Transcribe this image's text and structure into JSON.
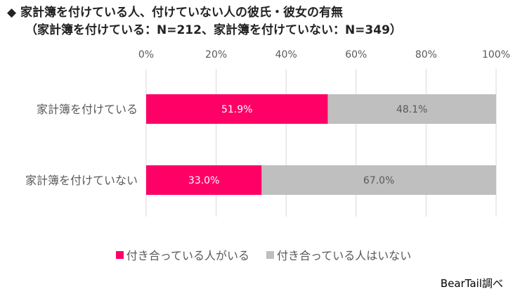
{
  "header": {
    "title_line1": "◆ 家計簿を付けている人、付けていない人の彼氏・彼女の有無",
    "title_line2": "（家計簿を付けている：N=212、家計簿を付けていない：N=349）"
  },
  "source": "BearTail調べ",
  "chart_data": {
    "type": "bar",
    "orientation": "horizontal",
    "stacked": true,
    "percent": true,
    "categories": [
      "家計簿を付けている",
      "家計簿を付けていない"
    ],
    "series": [
      {
        "name": "付き合っている人がいる",
        "values": [
          51.9,
          33.0
        ],
        "labels": [
          "51.9%",
          "33.0%"
        ],
        "color": "#FF0066",
        "label_color": "#ffffff"
      },
      {
        "name": "付き合っている人はいない",
        "values": [
          48.1,
          67.0
        ],
        "labels": [
          "48.1%",
          "67.0%"
        ],
        "color": "#BFBFBF",
        "label_color": "#595959"
      }
    ],
    "x_ticks": [
      "0%",
      "20%",
      "40%",
      "60%",
      "80%",
      "100%"
    ],
    "xlim": [
      0,
      100
    ],
    "grid": true,
    "legend_position": "bottom"
  }
}
